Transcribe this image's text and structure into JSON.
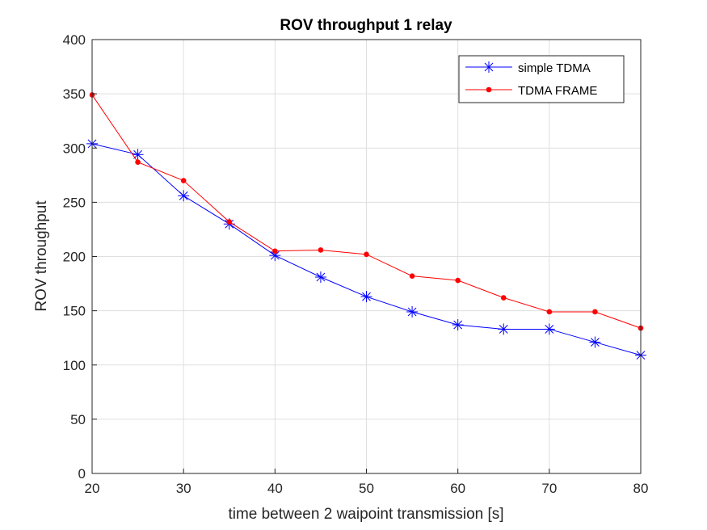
{
  "chart_data": {
    "type": "line",
    "title": "ROV throughput 1 relay",
    "xlabel": "time between 2 waipoint transmission [s]",
    "ylabel": "ROV throughput",
    "xlim": [
      20,
      80
    ],
    "ylim": [
      0,
      400
    ],
    "xticks": [
      "20",
      "30",
      "40",
      "50",
      "60",
      "70",
      "80"
    ],
    "yticks": [
      "0",
      "50",
      "100",
      "150",
      "200",
      "250",
      "300",
      "350",
      "400"
    ],
    "grid": true,
    "legend_position": "top-right",
    "x": [
      20,
      25,
      30,
      35,
      40,
      45,
      50,
      55,
      60,
      65,
      70,
      75,
      80
    ],
    "series": [
      {
        "name": "simple TDMA",
        "color": "#0000ff",
        "marker": "asterisk",
        "values": [
          304,
          294,
          256,
          230,
          201,
          181,
          163,
          149,
          137,
          133,
          133,
          121,
          109
        ]
      },
      {
        "name": "TDMA FRAME",
        "color": "#ff0000",
        "marker": "dot",
        "values": [
          349,
          287,
          270,
          232,
          205,
          206,
          202,
          182,
          178,
          162,
          149,
          149,
          134
        ]
      }
    ]
  }
}
